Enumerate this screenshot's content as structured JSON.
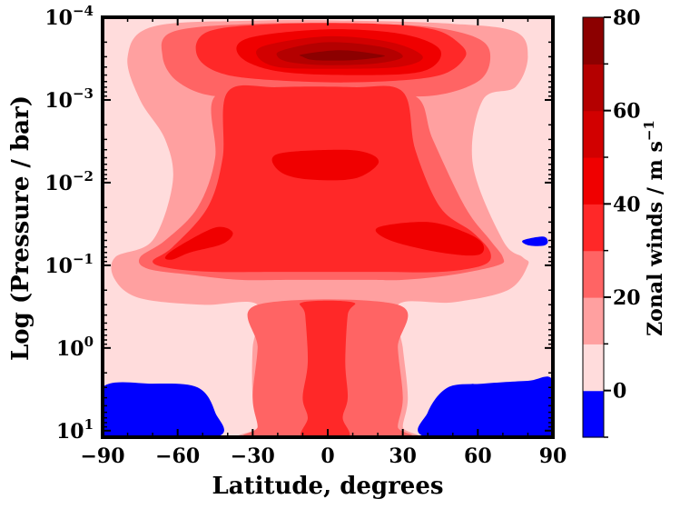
{
  "chart_data": {
    "type": "filled-contour",
    "xlabel": "Latitude, degrees",
    "ylabel": "Log (Pressure / bar)",
    "colorbar_label": "Zonal winds / m s",
    "colorbar_label_superscript": "−1",
    "xlim": [
      -90,
      90
    ],
    "ylim_bar": [
      12,
      0.0001
    ],
    "y_scale": "log",
    "y_inverted": true,
    "x_ticks": [
      -90,
      -60,
      -30,
      0,
      30,
      60,
      90
    ],
    "x_tick_labels": [
      "−90",
      "−60",
      "−30",
      "0",
      "30",
      "60",
      "90"
    ],
    "y_ticks": [
      {
        "exp": -4,
        "mant": "10",
        "sup": "−4"
      },
      {
        "exp": -3,
        "mant": "10",
        "sup": "−3"
      },
      {
        "exp": -2,
        "mant": "10",
        "sup": "−2"
      },
      {
        "exp": -1,
        "mant": "10",
        "sup": "−1"
      },
      {
        "exp": 0,
        "mant": "10",
        "sup": "0"
      },
      {
        "exp": 1,
        "mant": "10",
        "sup": "1"
      }
    ],
    "colorbar_levels": [
      -10,
      0,
      10,
      20,
      30,
      40,
      50,
      60,
      70,
      80
    ],
    "colorbar_tick_values": [
      0,
      20,
      40,
      60,
      80
    ],
    "colorbar_tick_labels": [
      "0",
      "20",
      "40",
      "60",
      "80"
    ],
    "colors": [
      "#0000ff",
      "#ffdcdc",
      "#ffa0a0",
      "#ff6464",
      "#ff2828",
      "#f00000",
      "#d20000",
      "#b40000",
      "#8c0000"
    ],
    "regions": [
      {
        "name": "easterly-south",
        "level": 0,
        "points": [
          [
            -90,
            3.0
          ],
          [
            -90,
            12
          ],
          [
            -45,
            12
          ],
          [
            -45,
            6
          ],
          [
            -52,
            3
          ],
          [
            -70,
            2.7
          ]
        ]
      },
      {
        "name": "easterly-north",
        "level": 0,
        "points": [
          [
            90,
            2.5
          ],
          [
            90,
            12
          ],
          [
            40,
            12
          ],
          [
            40,
            6
          ],
          [
            48,
            3
          ],
          [
            62,
            2.7
          ],
          [
            80,
            2.5
          ]
        ]
      },
      {
        "name": "easterly-cell-north",
        "level": 0,
        "points": [
          [
            78,
            0.05
          ],
          [
            86,
            0.045
          ],
          [
            88,
            0.052
          ],
          [
            86,
            0.058
          ],
          [
            80,
            0.057
          ]
        ]
      },
      {
        "name": "outer-shell",
        "level": 10,
        "points": [
          [
            -70,
            0.00013
          ],
          [
            -30,
            0.00011
          ],
          [
            10,
            0.00011
          ],
          [
            50,
            0.00012
          ],
          [
            75,
            0.00015
          ],
          [
            80,
            0.0003
          ],
          [
            75,
            0.0007
          ],
          [
            62,
            0.001
          ],
          [
            58,
            0.006
          ],
          [
            70,
            0.05
          ],
          [
            78,
            0.08
          ],
          [
            80,
            0.1
          ],
          [
            72,
            0.2
          ],
          [
            50,
            0.28
          ],
          [
            28,
            0.3
          ],
          [
            30,
            1
          ],
          [
            32,
            4
          ],
          [
            30,
            9
          ],
          [
            32,
            12
          ],
          [
            -32,
            12
          ],
          [
            -28,
            9
          ],
          [
            -30,
            4
          ],
          [
            -30,
            1
          ],
          [
            -28,
            0.3
          ],
          [
            -50,
            0.3
          ],
          [
            -75,
            0.25
          ],
          [
            -85,
            0.15
          ],
          [
            -85,
            0.08
          ],
          [
            -70,
            0.05
          ],
          [
            -62,
            0.01
          ],
          [
            -65,
            0.003
          ],
          [
            -75,
            0.001
          ],
          [
            -80,
            0.0003
          ]
        ]
      },
      {
        "name": "band-20-top",
        "level": 20,
        "points": [
          [
            -62,
            0.00015
          ],
          [
            -30,
            0.00012
          ],
          [
            10,
            0.00012
          ],
          [
            40,
            0.00013
          ],
          [
            60,
            0.00018
          ],
          [
            65,
            0.0003
          ],
          [
            60,
            0.0006
          ],
          [
            40,
            0.0009
          ],
          [
            10,
            0.0008
          ],
          [
            -20,
            0.0008
          ],
          [
            -45,
            0.0009
          ],
          [
            -60,
            0.0006
          ],
          [
            -66,
            0.0003
          ]
        ]
      },
      {
        "name": "band-20-body",
        "level": 20,
        "points": [
          [
            -45,
            0.0009
          ],
          [
            -20,
            0.0008
          ],
          [
            10,
            0.0008
          ],
          [
            35,
            0.0009
          ],
          [
            42,
            0.003
          ],
          [
            55,
            0.02
          ],
          [
            65,
            0.05
          ],
          [
            70,
            0.08
          ],
          [
            68,
            0.1
          ],
          [
            50,
            0.13
          ],
          [
            30,
            0.15
          ],
          [
            15,
            0.15
          ],
          [
            -15,
            0.15
          ],
          [
            -35,
            0.15
          ],
          [
            -55,
            0.13
          ],
          [
            -72,
            0.11
          ],
          [
            -75,
            0.08
          ],
          [
            -65,
            0.05
          ],
          [
            -52,
            0.02
          ],
          [
            -45,
            0.005
          ]
        ]
      },
      {
        "name": "column-20",
        "level": 20,
        "points": [
          [
            -28,
            0.3
          ],
          [
            28,
            0.3
          ],
          [
            28,
            1
          ],
          [
            30,
            4
          ],
          [
            28,
            9
          ],
          [
            30,
            12
          ],
          [
            -30,
            12
          ],
          [
            -28,
            9
          ],
          [
            -30,
            4
          ],
          [
            -28,
            1
          ]
        ]
      },
      {
        "name": "band-30-top",
        "level": 30,
        "points": [
          [
            -48,
            0.00015
          ],
          [
            -20,
            0.00012
          ],
          [
            20,
            0.00012
          ],
          [
            42,
            0.00014
          ],
          [
            52,
            0.0002
          ],
          [
            55,
            0.0003
          ],
          [
            45,
            0.0005
          ],
          [
            20,
            0.0006
          ],
          [
            -10,
            0.0006
          ],
          [
            -40,
            0.0005
          ],
          [
            -52,
            0.0003
          ]
        ]
      },
      {
        "name": "band-30-body",
        "level": 30,
        "points": [
          [
            -40,
            0.0008
          ],
          [
            -20,
            0.0007
          ],
          [
            10,
            0.0007
          ],
          [
            30,
            0.0008
          ],
          [
            35,
            0.004
          ],
          [
            45,
            0.02
          ],
          [
            58,
            0.04
          ],
          [
            65,
            0.07
          ],
          [
            62,
            0.1
          ],
          [
            45,
            0.12
          ],
          [
            20,
            0.12
          ],
          [
            -20,
            0.12
          ],
          [
            -45,
            0.12
          ],
          [
            -62,
            0.11
          ],
          [
            -70,
            0.09
          ],
          [
            -62,
            0.06
          ],
          [
            -48,
            0.02
          ],
          [
            -42,
            0.005
          ]
        ]
      },
      {
        "name": "column-30",
        "level": 30,
        "points": [
          [
            -10,
            0.28
          ],
          [
            10,
            0.28
          ],
          [
            8,
            0.4
          ],
          [
            7,
            1.5
          ],
          [
            8,
            4
          ],
          [
            6,
            7
          ],
          [
            8,
            12
          ],
          [
            -10,
            12
          ],
          [
            -8,
            7
          ],
          [
            -10,
            4
          ],
          [
            -8,
            1.5
          ],
          [
            -9,
            0.4
          ]
        ]
      },
      {
        "name": "band-40-top",
        "level": 40,
        "points": [
          [
            -32,
            0.00018
          ],
          [
            0,
            0.00014
          ],
          [
            30,
            0.00016
          ],
          [
            45,
            0.00025
          ],
          [
            38,
            0.00045
          ],
          [
            10,
            0.0005
          ],
          [
            -20,
            0.00045
          ],
          [
            -35,
            0.0003
          ]
        ]
      },
      {
        "name": "band-40-mid",
        "level": 40,
        "points": [
          [
            -20,
            0.0045
          ],
          [
            5,
            0.004
          ],
          [
            17,
            0.0045
          ],
          [
            20,
            0.006
          ],
          [
            10,
            0.009
          ],
          [
            -10,
            0.009
          ],
          [
            -20,
            0.007
          ]
        ]
      },
      {
        "name": "band-40-sw",
        "level": 40,
        "points": [
          [
            -45,
            0.035
          ],
          [
            -38,
            0.04
          ],
          [
            -42,
            0.055
          ],
          [
            -55,
            0.07
          ],
          [
            -62,
            0.085
          ],
          [
            -65,
            0.08
          ],
          [
            -60,
            0.06
          ]
        ]
      },
      {
        "name": "band-40-ne",
        "level": 40,
        "points": [
          [
            20,
            0.035
          ],
          [
            40,
            0.03
          ],
          [
            55,
            0.04
          ],
          [
            62,
            0.055
          ],
          [
            60,
            0.075
          ],
          [
            45,
            0.07
          ],
          [
            25,
            0.05
          ]
        ]
      },
      {
        "name": "band-50",
        "level": 50,
        "points": [
          [
            -25,
            0.00022
          ],
          [
            0,
            0.00017
          ],
          [
            25,
            0.0002
          ],
          [
            38,
            0.0003
          ],
          [
            28,
            0.0004
          ],
          [
            0,
            0.00042
          ],
          [
            -20,
            0.0004
          ],
          [
            -28,
            0.0003
          ]
        ]
      },
      {
        "name": "band-60",
        "level": 60,
        "points": [
          [
            -18,
            0.00025
          ],
          [
            0,
            0.0002
          ],
          [
            22,
            0.00023
          ],
          [
            30,
            0.0003
          ],
          [
            20,
            0.00036
          ],
          [
            0,
            0.00038
          ],
          [
            -15,
            0.00035
          ],
          [
            -20,
            0.0003
          ]
        ]
      },
      {
        "name": "band-70",
        "level": 70,
        "points": [
          [
            -10,
            0.00028
          ],
          [
            5,
            0.00025
          ],
          [
            20,
            0.00028
          ],
          [
            22,
            0.0003
          ],
          [
            10,
            0.00033
          ],
          [
            -5,
            0.00033
          ],
          [
            -10,
            0.0003
          ]
        ]
      }
    ]
  }
}
